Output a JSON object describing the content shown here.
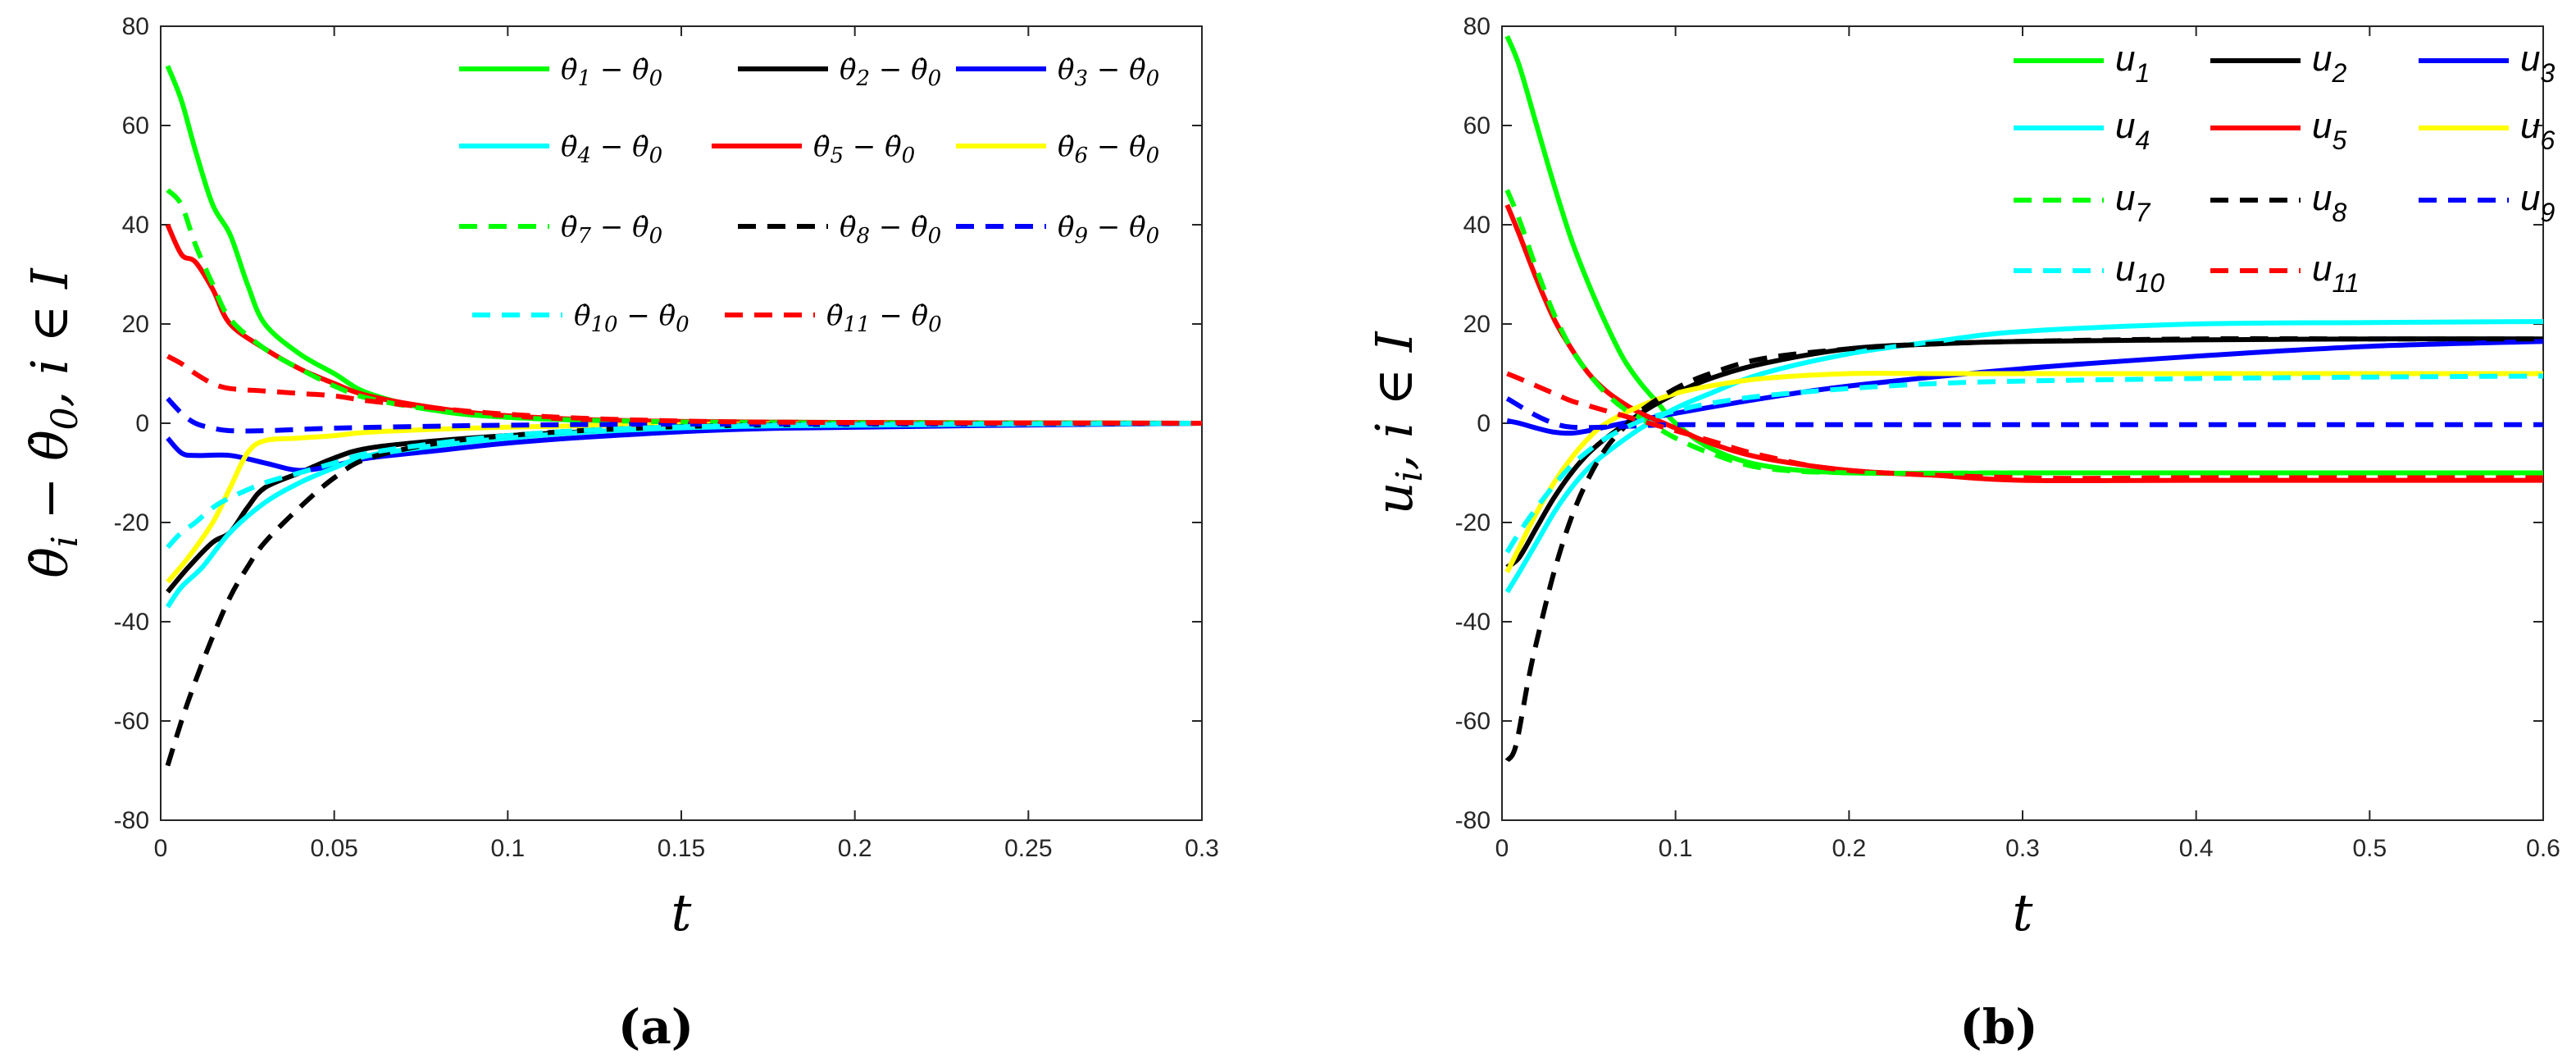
{
  "chart_data": [
    {
      "type": "line",
      "panel_label": "(a)",
      "xlabel": "t",
      "ylabel_parts": {
        "base": "θ̇",
        "sub": "i",
        "mid": " − θ̇",
        "sub2": "0",
        "tail": ", i ∈ I"
      },
      "xlim": [
        0,
        0.3
      ],
      "ylim": [
        -80,
        80
      ],
      "xticks": [
        0,
        0.05,
        0.1,
        0.15,
        0.2,
        0.25,
        0.3
      ],
      "xtick_labels": [
        "0",
        "0.05",
        "0.1",
        "0.15",
        "0.2",
        "0.25",
        "0.3"
      ],
      "yticks": [
        -80,
        -60,
        -40,
        -20,
        0,
        20,
        40,
        60,
        80
      ],
      "ytick_labels": [
        "-80",
        "-60",
        "-40",
        "-20",
        "0",
        "20",
        "40",
        "60",
        "80"
      ],
      "legend_placement": "top-right",
      "series": [
        {
          "name": "θ̇1 − θ̇0",
          "sub": "1",
          "color": "#00ff00",
          "dash": "solid",
          "x": [
            0.002,
            0.006,
            0.01,
            0.015,
            0.02,
            0.025,
            0.03,
            0.04,
            0.05,
            0.06,
            0.08,
            0.1,
            0.13,
            0.18,
            0.3
          ],
          "y": [
            72,
            65,
            55,
            44,
            38,
            28,
            20,
            14,
            10,
            6,
            2.5,
            1.2,
            0.5,
            0.2,
            0
          ]
        },
        {
          "name": "θ̇2 − θ̇0",
          "sub": "2",
          "color": "#000000",
          "dash": "solid",
          "x": [
            0.002,
            0.008,
            0.015,
            0.02,
            0.025,
            0.03,
            0.04,
            0.05,
            0.06,
            0.08,
            0.1,
            0.13,
            0.18,
            0.3
          ],
          "y": [
            -34,
            -29,
            -24,
            -22,
            -17,
            -13,
            -10,
            -7,
            -5,
            -3.5,
            -2.5,
            -1.5,
            -0.5,
            0
          ]
        },
        {
          "name": "θ̇3 − θ̇0",
          "sub": "3",
          "color": "#0000ff",
          "dash": "solid",
          "x": [
            0.002,
            0.006,
            0.01,
            0.02,
            0.03,
            0.04,
            0.05,
            0.06,
            0.08,
            0.1,
            0.13,
            0.18,
            0.3
          ],
          "y": [
            -3,
            -6,
            -6.5,
            -6.5,
            -8,
            -9.5,
            -8.5,
            -7,
            -5.5,
            -4,
            -2.5,
            -1,
            0
          ]
        },
        {
          "name": "θ̇4 − θ̇0",
          "sub": "4",
          "color": "#00ffff",
          "dash": "solid",
          "x": [
            0.002,
            0.006,
            0.012,
            0.02,
            0.03,
            0.04,
            0.05,
            0.06,
            0.08,
            0.1,
            0.13,
            0.18,
            0.3
          ],
          "y": [
            -37,
            -33,
            -29,
            -22,
            -16,
            -12,
            -9,
            -6.5,
            -4.5,
            -3,
            -1.5,
            -0.5,
            0
          ]
        },
        {
          "name": "θ̇5 − θ̇0",
          "sub": "5",
          "color": "#ff0000",
          "dash": "solid",
          "x": [
            0.002,
            0.006,
            0.01,
            0.015,
            0.02,
            0.03,
            0.04,
            0.05,
            0.06,
            0.08,
            0.1,
            0.13,
            0.18,
            0.3
          ],
          "y": [
            40,
            34,
            32.5,
            27,
            20,
            15,
            11,
            8,
            5.5,
            3,
            1.5,
            0.6,
            0.2,
            0
          ]
        },
        {
          "name": "θ̇6 − θ̇0",
          "sub": "6",
          "color": "#ffff00",
          "dash": "solid",
          "x": [
            0.002,
            0.008,
            0.015,
            0.02,
            0.025,
            0.03,
            0.04,
            0.05,
            0.06,
            0.08,
            0.1,
            0.13,
            0.18,
            0.3
          ],
          "y": [
            -32,
            -27,
            -20,
            -13,
            -6,
            -3.5,
            -3,
            -2.5,
            -1.8,
            -1.2,
            -0.8,
            -0.4,
            -0.1,
            0
          ]
        },
        {
          "name": "θ̇7 − θ̇0",
          "sub": "7",
          "color": "#00ff00",
          "dash": "dashed",
          "x": [
            0.002,
            0.006,
            0.01,
            0.015,
            0.02,
            0.03,
            0.04,
            0.05,
            0.06,
            0.08,
            0.1,
            0.13,
            0.18,
            0.3
          ],
          "y": [
            47,
            44,
            36,
            28,
            21,
            15,
            11,
            7.5,
            5,
            2.5,
            1.2,
            0.5,
            0.1,
            0
          ]
        },
        {
          "name": "θ̇8 − θ̇0",
          "sub": "8",
          "color": "#000000",
          "dash": "dashed",
          "x": [
            0.002,
            0.006,
            0.01,
            0.015,
            0.02,
            0.025,
            0.03,
            0.04,
            0.05,
            0.06,
            0.08,
            0.1,
            0.13,
            0.18,
            0.3
          ],
          "y": [
            -69,
            -60,
            -52,
            -43,
            -35,
            -29,
            -24,
            -17,
            -11,
            -7,
            -4,
            -2.5,
            -1.2,
            -0.3,
            0
          ]
        },
        {
          "name": "θ̇9 − θ̇0",
          "sub": "9",
          "color": "#0000ff",
          "dash": "dashed",
          "x": [
            0.002,
            0.006,
            0.01,
            0.015,
            0.02,
            0.03,
            0.05,
            0.08,
            0.1,
            0.15,
            0.3
          ],
          "y": [
            5,
            2,
            0,
            -1,
            -1.5,
            -1.5,
            -1,
            -0.6,
            -0.4,
            -0.2,
            0
          ]
        },
        {
          "name": "θ̇10 − θ̇0",
          "sub": "10",
          "color": "#00ffff",
          "dash": "dashed",
          "x": [
            0.002,
            0.006,
            0.01,
            0.015,
            0.02,
            0.03,
            0.04,
            0.05,
            0.06,
            0.08,
            0.1,
            0.13,
            0.18,
            0.3
          ],
          "y": [
            -25,
            -22,
            -20,
            -17,
            -15,
            -12,
            -10,
            -8,
            -6,
            -4,
            -2.5,
            -1.2,
            -0.4,
            0
          ]
        },
        {
          "name": "θ̇11 − θ̇0",
          "sub": "11",
          "color": "#ff0000",
          "dash": "dashed",
          "x": [
            0.002,
            0.006,
            0.01,
            0.015,
            0.02,
            0.03,
            0.04,
            0.05,
            0.06,
            0.08,
            0.1,
            0.13,
            0.18,
            0.3
          ],
          "y": [
            13.5,
            12,
            10,
            8,
            7,
            6.5,
            6,
            5.5,
            4.5,
            3,
            1.8,
            0.8,
            0.2,
            0
          ]
        }
      ]
    },
    {
      "type": "line",
      "panel_label": "(b)",
      "xlabel": "t",
      "ylabel_parts": {
        "base": "u",
        "sub": "i",
        "tail": ", i ∈ I"
      },
      "xlim": [
        0,
        0.6
      ],
      "ylim": [
        -80,
        80
      ],
      "xticks": [
        0,
        0.1,
        0.2,
        0.3,
        0.4,
        0.5,
        0.6
      ],
      "xtick_labels": [
        "0",
        "0.1",
        "0.2",
        "0.3",
        "0.4",
        "0.5",
        "0.6"
      ],
      "yticks": [
        -80,
        -60,
        -40,
        -20,
        0,
        20,
        40,
        60,
        80
      ],
      "ytick_labels": [
        "-80",
        "-60",
        "-40",
        "-20",
        "0",
        "20",
        "40",
        "60",
        "80"
      ],
      "legend_placement": "top-right",
      "series": [
        {
          "name": "u1",
          "sub": "1",
          "color": "#00ff00",
          "dash": "solid",
          "x": [
            0.003,
            0.01,
            0.02,
            0.03,
            0.04,
            0.05,
            0.06,
            0.07,
            0.08,
            0.09,
            0.1,
            0.12,
            0.15,
            0.2,
            0.3,
            0.4,
            0.6
          ],
          "y": [
            78,
            72,
            60,
            48,
            37,
            28,
            20,
            13,
            8,
            4,
            0,
            -5,
            -8.5,
            -10,
            -10,
            -10,
            -10
          ]
        },
        {
          "name": "u2",
          "sub": "2",
          "color": "#000000",
          "dash": "solid",
          "x": [
            0.003,
            0.01,
            0.02,
            0.03,
            0.04,
            0.05,
            0.06,
            0.08,
            0.1,
            0.12,
            0.15,
            0.2,
            0.25,
            0.3,
            0.4,
            0.5,
            0.6
          ],
          "y": [
            -29,
            -27,
            -21,
            -15,
            -10,
            -6,
            -3,
            2,
            6,
            9,
            12,
            15,
            16,
            16.5,
            16.8,
            17,
            17
          ]
        },
        {
          "name": "u3",
          "sub": "3",
          "color": "#0000ff",
          "dash": "solid",
          "x": [
            0.003,
            0.01,
            0.02,
            0.03,
            0.04,
            0.05,
            0.07,
            0.1,
            0.15,
            0.2,
            0.3,
            0.4,
            0.5,
            0.6
          ],
          "y": [
            0.5,
            0,
            -1,
            -1.8,
            -2,
            -1.5,
            0,
            2,
            5,
            7.5,
            11,
            13.5,
            15.5,
            16.5
          ]
        },
        {
          "name": "u4",
          "sub": "4",
          "color": "#00ffff",
          "dash": "solid",
          "x": [
            0.003,
            0.01,
            0.02,
            0.03,
            0.04,
            0.05,
            0.06,
            0.08,
            0.1,
            0.12,
            0.15,
            0.2,
            0.25,
            0.3,
            0.4,
            0.5,
            0.6
          ],
          "y": [
            -34,
            -30,
            -24,
            -18,
            -13,
            -9,
            -6,
            -1,
            3,
            6,
            10,
            14,
            16.5,
            18.5,
            20,
            20.3,
            20.5
          ]
        },
        {
          "name": "u5",
          "sub": "5",
          "color": "#ff0000",
          "dash": "solid",
          "x": [
            0.003,
            0.01,
            0.02,
            0.03,
            0.04,
            0.05,
            0.06,
            0.07,
            0.08,
            0.09,
            0.1,
            0.12,
            0.15,
            0.2,
            0.25,
            0.3,
            0.4,
            0.6
          ],
          "y": [
            44,
            38,
            29,
            21,
            15,
            10,
            6.5,
            4,
            2,
            0.5,
            -1,
            -4,
            -7,
            -9.5,
            -10.5,
            -11.5,
            -11.5,
            -11.5
          ]
        },
        {
          "name": "u6",
          "sub": "6",
          "color": "#ffff00",
          "dash": "solid",
          "x": [
            0.003,
            0.01,
            0.02,
            0.03,
            0.04,
            0.05,
            0.06,
            0.08,
            0.1,
            0.12,
            0.15,
            0.2,
            0.25,
            0.3,
            0.4,
            0.6
          ],
          "y": [
            -30,
            -25,
            -18,
            -12,
            -7,
            -3,
            0,
            3.5,
            6,
            7.5,
            9,
            10,
            10,
            10,
            10,
            10
          ]
        },
        {
          "name": "u7",
          "sub": "7",
          "color": "#00ff00",
          "dash": "dashed",
          "x": [
            0.003,
            0.01,
            0.02,
            0.03,
            0.04,
            0.05,
            0.06,
            0.07,
            0.08,
            0.09,
            0.1,
            0.12,
            0.15,
            0.2,
            0.3,
            0.4,
            0.6
          ],
          "y": [
            47,
            41,
            31,
            22,
            15,
            10,
            6,
            3,
            1,
            -1,
            -3,
            -6,
            -9,
            -10,
            -10,
            -10,
            -10
          ]
        },
        {
          "name": "u8",
          "sub": "8",
          "color": "#000000",
          "dash": "dashed",
          "x": [
            0.003,
            0.008,
            0.015,
            0.02,
            0.03,
            0.04,
            0.05,
            0.06,
            0.07,
            0.08,
            0.1,
            0.12,
            0.15,
            0.2,
            0.25,
            0.3,
            0.4,
            0.5,
            0.6
          ],
          "y": [
            -68,
            -65,
            -52,
            -44,
            -30,
            -19,
            -11,
            -5,
            -1,
            2.5,
            7,
            10,
            13,
            15,
            16,
            16.5,
            17,
            17,
            17
          ]
        },
        {
          "name": "u9",
          "sub": "9",
          "color": "#0000ff",
          "dash": "dashed",
          "x": [
            0.003,
            0.01,
            0.02,
            0.03,
            0.04,
            0.06,
            0.08,
            0.1,
            0.15,
            0.3,
            0.6
          ],
          "y": [
            5,
            3.5,
            1.5,
            0,
            -0.8,
            -0.8,
            -0.5,
            -0.3,
            -0.3,
            -0.3,
            -0.3
          ]
        },
        {
          "name": "u10",
          "sub": "10",
          "color": "#00ffff",
          "dash": "dashed",
          "x": [
            0.003,
            0.01,
            0.02,
            0.03,
            0.04,
            0.05,
            0.06,
            0.08,
            0.1,
            0.12,
            0.15,
            0.2,
            0.25,
            0.3,
            0.4,
            0.5,
            0.6
          ],
          "y": [
            -26,
            -22,
            -17,
            -12.5,
            -8.5,
            -5.5,
            -3,
            0.5,
            2.5,
            4,
            5.5,
            7,
            8,
            8.5,
            9,
            9.3,
            9.5
          ]
        },
        {
          "name": "u11",
          "sub": "11",
          "color": "#ff0000",
          "dash": "dashed",
          "x": [
            0.003,
            0.01,
            0.02,
            0.03,
            0.04,
            0.05,
            0.06,
            0.07,
            0.08,
            0.09,
            0.1,
            0.12,
            0.15,
            0.2,
            0.3,
            0.4,
            0.6
          ],
          "y": [
            10,
            9,
            7.5,
            6,
            4.5,
            3.5,
            2.5,
            1.5,
            0.5,
            -0.5,
            -1.5,
            -3.5,
            -6.5,
            -9.5,
            -11,
            -11,
            -11
          ]
        }
      ]
    }
  ]
}
